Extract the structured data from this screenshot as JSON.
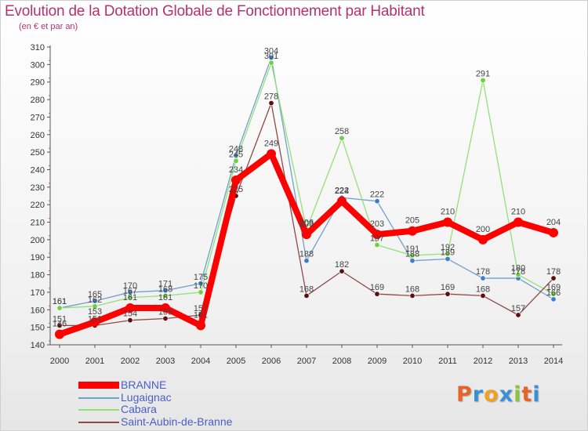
{
  "chart_data": {
    "type": "line",
    "title": "Evolution de la Dotation Globale de Fonctionnement par Habitant",
    "subtitle": "(en € et par an)",
    "x": [
      "2000",
      "2001",
      "2002",
      "2003",
      "2004",
      "2005",
      "2006",
      "2007",
      "2008",
      "2009",
      "2010",
      "2011",
      "2012",
      "2013",
      "2014"
    ],
    "ylim": [
      140,
      310
    ],
    "yticks": [
      140,
      150,
      160,
      170,
      180,
      190,
      200,
      210,
      220,
      230,
      240,
      250,
      260,
      270,
      280,
      290,
      300,
      310
    ],
    "series": [
      {
        "name": "Lugaignac",
        "color": "#6fa0cf",
        "marker": "#3d7fc7",
        "values": [
          161,
          165,
          170,
          171,
          175,
          248,
          304,
          188,
          224,
          222,
          188,
          189,
          178,
          178,
          166
        ],
        "labels": [
          "161",
          "165",
          "170",
          "171",
          "175",
          "248",
          "304",
          "188",
          "224",
          "222",
          "188",
          "189",
          "178",
          "178",
          "166"
        ]
      },
      {
        "name": "Cabara",
        "color": "#93e07a",
        "marker": "#6fcf43",
        "values": [
          161,
          162,
          167,
          168,
          170,
          245,
          301,
          206,
          258,
          197,
          191,
          192,
          291,
          180,
          169
        ],
        "labels": [
          "161",
          "162",
          "167",
          "168",
          "170",
          "245",
          "301",
          "206",
          "258",
          "197",
          "191",
          "192",
          "291",
          "180",
          "169"
        ]
      },
      {
        "name": "Saint-Aubin-de-Branne",
        "color": "#8e4a4a",
        "marker": "#5a1010",
        "values": [
          151,
          151,
          154,
          155,
          157,
          225,
          278,
          168,
          182,
          169,
          168,
          169,
          168,
          157,
          178
        ],
        "labels": [
          "151",
          "151",
          "154",
          "155",
          "157",
          "225",
          "278",
          "168",
          "182",
          "169",
          "168",
          "169",
          "168",
          "157",
          "178"
        ]
      },
      {
        "name": "BRANNE",
        "color": "#ff0000",
        "marker": "#ff0000",
        "values": [
          146,
          153,
          161,
          161,
          151,
          234,
          249,
          203,
          222,
          203,
          205,
          210,
          200,
          210,
          204
        ],
        "labels": [
          "146",
          "153",
          "161",
          "161",
          "151",
          "234",
          "249",
          "203",
          "222",
          "203",
          "205",
          "210",
          "200",
          "210",
          "204"
        ]
      }
    ],
    "legend": [
      "BRANNE",
      "Lugaignac",
      "Cabara",
      "Saint-Aubin-de-Branne"
    ],
    "legend_position": "bottom-left",
    "grid": false
  },
  "logo": {
    "letters": [
      "P",
      "r",
      "o",
      "x",
      "i",
      "t",
      "i"
    ],
    "colors": [
      "#e8632b",
      "#3a8fd6",
      "#f2a020",
      "#3a8fd6",
      "#8bc43f",
      "#e8632b",
      "#3a8fd6"
    ]
  },
  "colors": {
    "title": "#b5336b",
    "axis": "#555555",
    "legend_text": "#4a5ec8"
  }
}
